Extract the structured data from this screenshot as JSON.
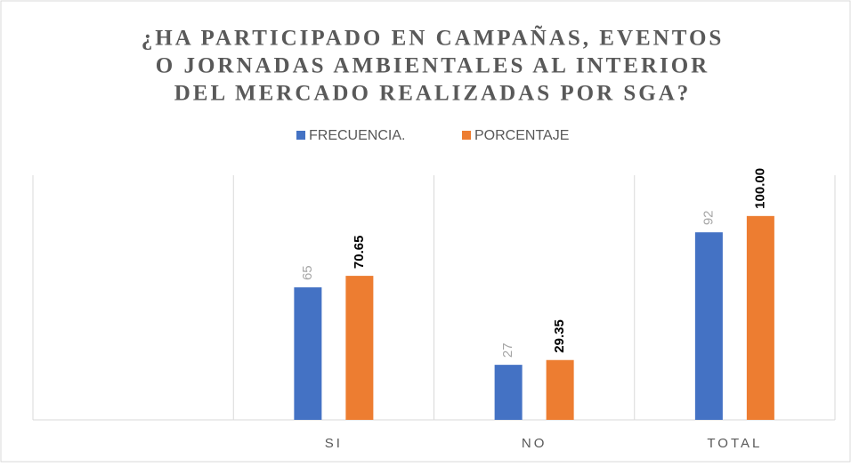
{
  "chart_data": {
    "type": "bar",
    "title": [
      "¿HA PARTICIPADO EN CAMPAÑAS, EVENTOS",
      "O JORNADAS AMBIENTALES AL INTERIOR",
      "DEL MERCADO REALIZADAS POR SGA?"
    ],
    "categories": [
      null,
      "SI",
      "NO",
      "TOTAL"
    ],
    "series": [
      {
        "name": "FRECUENCIA.",
        "color": "#4472c4",
        "values": [
          null,
          65,
          27,
          92
        ]
      },
      {
        "name": "PORCENTAJE",
        "color": "#ed7d31",
        "values": [
          null,
          70.65,
          29.35,
          100
        ],
        "value_labels": [
          null,
          "70.65",
          "29.35",
          "100.00"
        ]
      }
    ],
    "ylim": [
      0,
      120
    ],
    "legend": "top"
  }
}
